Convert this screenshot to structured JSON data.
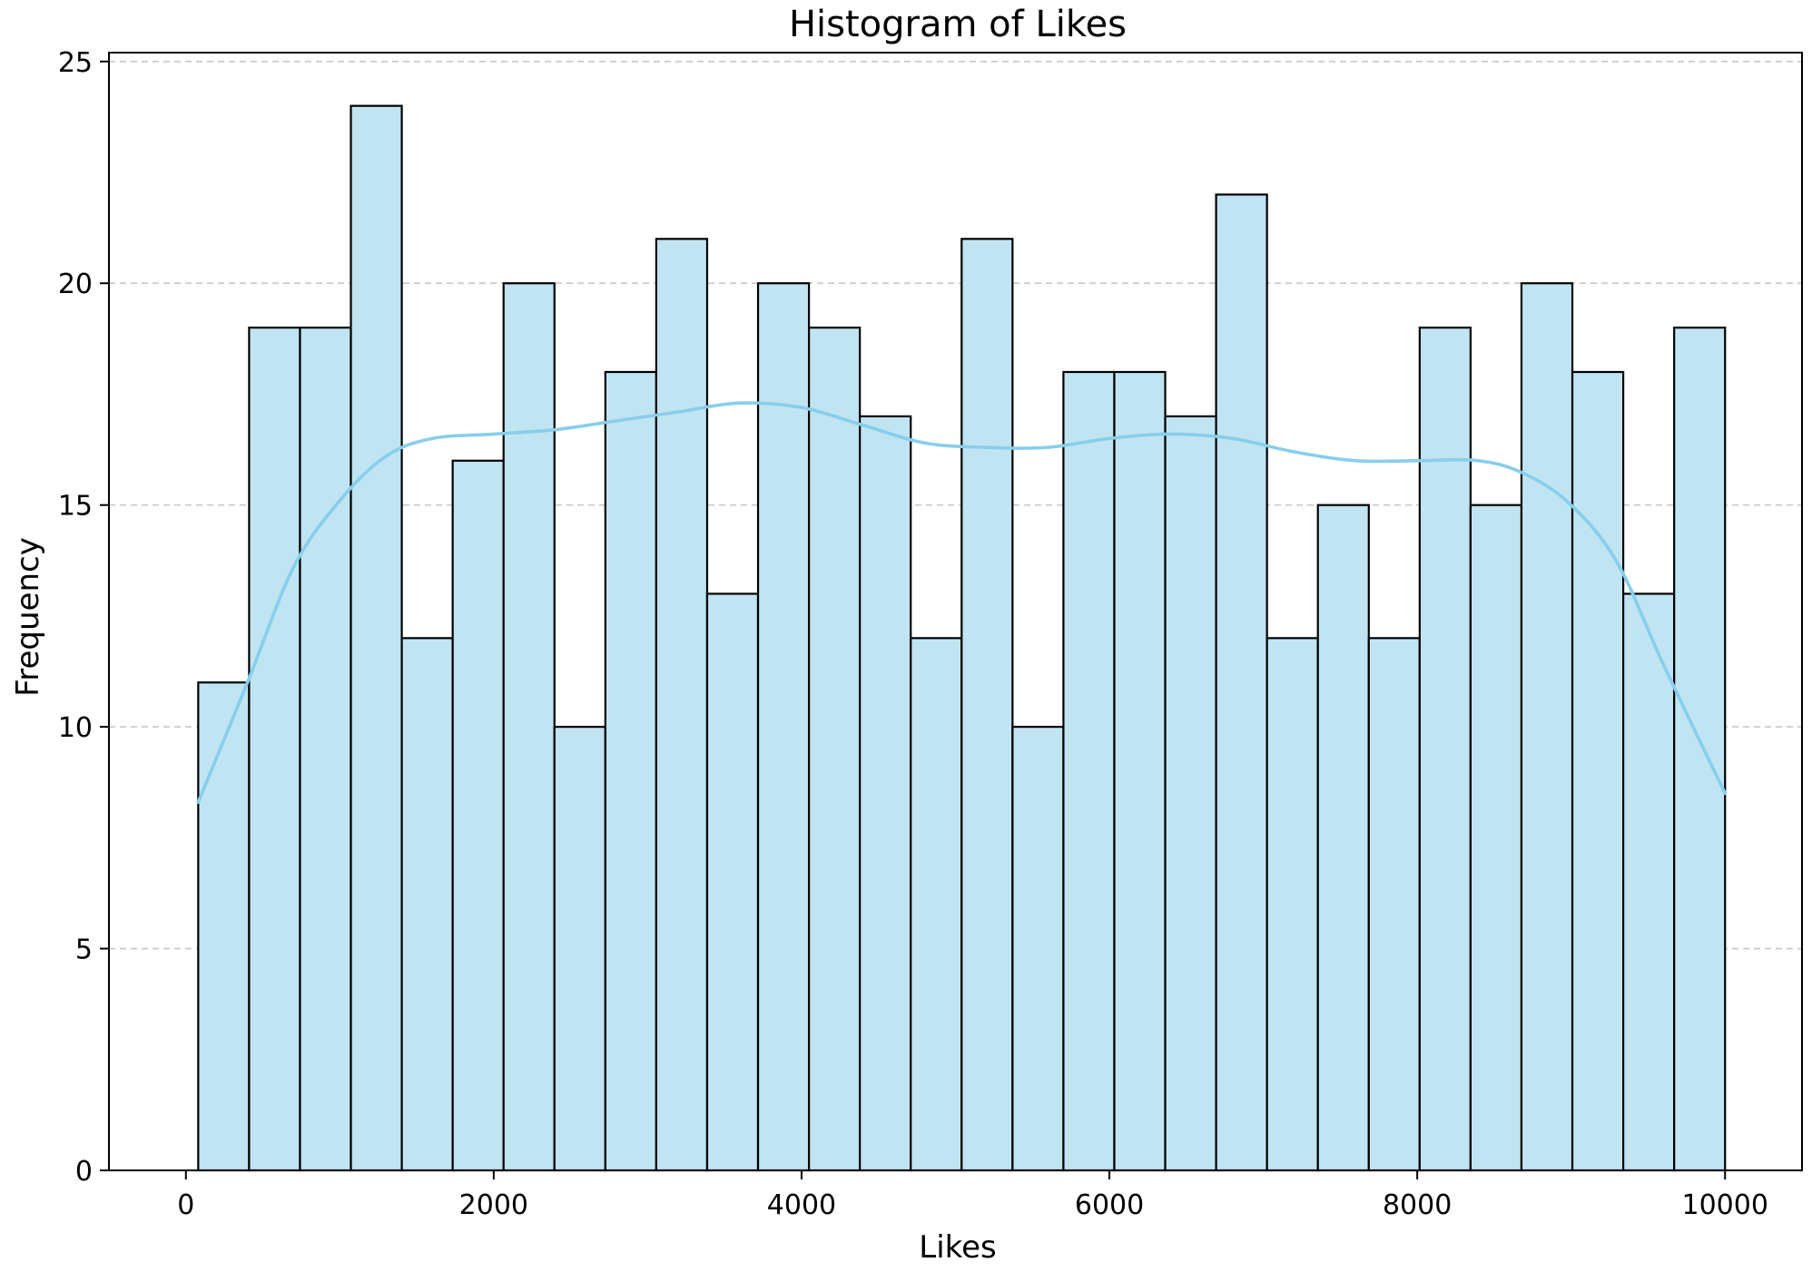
{
  "chart_data": {
    "type": "bar",
    "title": "Histogram of Likes",
    "xlabel": "Likes",
    "ylabel": "Frequency",
    "bin_start": 80,
    "bin_end": 10000,
    "bin_count": 30,
    "values": [
      11,
      19,
      19,
      24,
      12,
      16,
      20,
      10,
      18,
      21,
      13,
      20,
      19,
      17,
      12,
      21,
      10,
      18,
      18,
      17,
      22,
      12,
      15,
      12,
      19,
      15,
      20,
      18,
      13,
      19
    ],
    "kde": {
      "x": [
        80,
        400,
        700,
        1000,
        1300,
        1600,
        2000,
        2400,
        2800,
        3200,
        3600,
        4000,
        4400,
        4800,
        5200,
        5600,
        6000,
        6400,
        6800,
        7200,
        7600,
        8000,
        8400,
        8700,
        9000,
        9300,
        9600,
        10000
      ],
      "y": [
        8.3,
        11.0,
        13.6,
        15.1,
        16.1,
        16.5,
        16.6,
        16.7,
        16.9,
        17.1,
        17.3,
        17.2,
        16.8,
        16.4,
        16.3,
        16.3,
        16.5,
        16.6,
        16.5,
        16.2,
        16.0,
        16.0,
        16.0,
        15.7,
        15.0,
        13.7,
        11.4,
        8.5
      ]
    },
    "xlim": [
      -500,
      10500
    ],
    "ylim": [
      0,
      25.2
    ],
    "xticks": [
      0,
      2000,
      4000,
      6000,
      8000,
      10000
    ],
    "yticks": [
      0,
      5,
      10,
      15,
      20,
      25
    ],
    "grid": "y-dashed",
    "bar_color": "#c0e4f2",
    "edge_color": "#000000",
    "kde_color": "#87ceeb"
  }
}
